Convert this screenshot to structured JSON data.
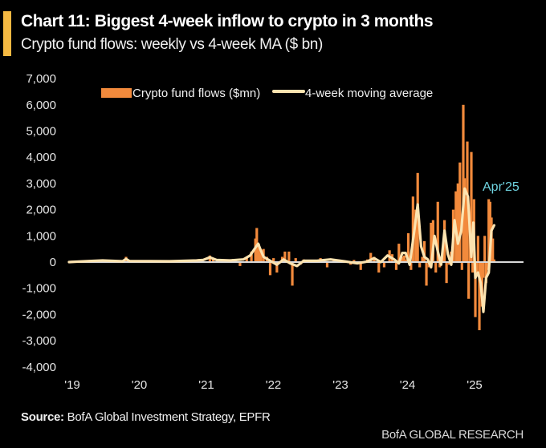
{
  "header": {
    "title": "Chart 11: Biggest 4-week inflow to crypto in 3 months",
    "subtitle": "Crypto fund flows: weekly vs 4-week MA ($ bn)"
  },
  "footer": {
    "source_label": "Source:",
    "source_text": " BofA Global Investment Strategy, EPFR",
    "brand": "BofA GLOBAL RESEARCH"
  },
  "colors": {
    "background": "#000000",
    "accent_bar": "#F5B942",
    "bars": "#F28A3C",
    "ma_line": "#FCE3B0",
    "zero_line": "#d9d9d9",
    "annotation": "#6fd3e0"
  },
  "chart_data": {
    "type": "bar",
    "title": "Chart 11: Biggest 4-week inflow to crypto in 3 months",
    "subtitle": "Crypto fund flows: weekly vs 4-week MA ($ bn)",
    "xlabel": "",
    "ylabel": "",
    "ylim": [
      -4000,
      7000
    ],
    "yticks": [
      7000,
      6000,
      5000,
      4000,
      3000,
      2000,
      1000,
      0,
      -1000,
      -2000,
      -3000,
      -4000
    ],
    "ytick_labels": [
      "7,000",
      "6,000",
      "5,000",
      "4,000",
      "3,000",
      "2,000",
      "1,000",
      "0",
      "-1,000",
      "-2,000",
      "-3,000",
      "-4,000"
    ],
    "xlim": [
      2019.0,
      2025.85
    ],
    "xticks": [
      2019,
      2020,
      2021,
      2022,
      2023,
      2024,
      2025
    ],
    "xtick_labels": [
      "'19",
      "'20",
      "'21",
      "'22",
      "'23",
      "'24",
      "'25"
    ],
    "grid": false,
    "legend": {
      "placement": "top",
      "entries": [
        {
          "label": "Crypto fund flows ($mn)",
          "type": "bar"
        },
        {
          "label": "4-week moving average",
          "type": "line"
        }
      ]
    },
    "annotations": [
      {
        "text": "Apr'25",
        "x": 2025.3,
        "y": 3000
      }
    ],
    "series": [
      {
        "name": "Crypto fund flows ($mn)",
        "type": "bar",
        "x": [
          2019.05,
          2019.4,
          2019.5,
          2019.85,
          2020.3,
          2020.7,
          2020.95,
          2021.1,
          2021.15,
          2021.3,
          2021.45,
          2021.55,
          2021.65,
          2021.72,
          2021.78,
          2021.8,
          2021.83,
          2021.86,
          2021.9,
          2021.95,
          2022.0,
          2022.05,
          2022.1,
          2022.18,
          2022.22,
          2022.28,
          2022.33,
          2022.38,
          2022.45,
          2022.5,
          2022.6,
          2022.75,
          2022.85,
          2022.95,
          2023.1,
          2023.2,
          2023.25,
          2023.35,
          2023.45,
          2023.5,
          2023.55,
          2023.62,
          2023.7,
          2023.78,
          2023.82,
          2023.88,
          2023.92,
          2023.97,
          2024.0,
          2024.03,
          2024.06,
          2024.1,
          2024.13,
          2024.17,
          2024.2,
          2024.23,
          2024.27,
          2024.3,
          2024.33,
          2024.37,
          2024.4,
          2024.43,
          2024.47,
          2024.5,
          2024.53,
          2024.57,
          2024.6,
          2024.63,
          2024.67,
          2024.7,
          2024.73,
          2024.77,
          2024.8,
          2024.83,
          2024.86,
          2024.88,
          2024.9,
          2024.92,
          2024.94,
          2024.96,
          2024.98,
          2025.0,
          2025.02,
          2025.04,
          2025.06,
          2025.08,
          2025.1,
          2025.12,
          2025.14,
          2025.16,
          2025.18,
          2025.2,
          2025.22,
          2025.24,
          2025.26,
          2025.28,
          2025.3,
          2025.32,
          2025.34
        ],
        "values": [
          50,
          80,
          60,
          200,
          60,
          90,
          120,
          250,
          150,
          100,
          120,
          -150,
          200,
          400,
          900,
          1300,
          700,
          450,
          500,
          200,
          -500,
          150,
          -400,
          200,
          400,
          400,
          -900,
          150,
          -100,
          100,
          80,
          150,
          -200,
          100,
          50,
          -100,
          80,
          -300,
          100,
          350,
          200,
          -400,
          -200,
          450,
          300,
          -300,
          700,
          200,
          250,
          100,
          1100,
          -300,
          2500,
          2000,
          3400,
          -200,
          200,
          800,
          -900,
          -200,
          1500,
          1600,
          -400,
          2300,
          -200,
          400,
          1600,
          -800,
          -100,
          400,
          2000,
          2700,
          3000,
          3800,
          -300,
          6000,
          3200,
          2500,
          4600,
          -1400,
          1200,
          4200,
          -400,
          2400,
          -2100,
          -400,
          1000,
          -2600,
          -1300,
          -1700,
          -600,
          1000,
          -800,
          -300,
          2400,
          2300,
          1700,
          900,
          100
        ],
        "values_note": "approximate weekly flows read from chart"
      },
      {
        "name": "4-week moving average",
        "type": "line",
        "x": [
          2019.0,
          2019.3,
          2019.5,
          2019.8,
          2019.85,
          2019.9,
          2020.5,
          2020.9,
          2021.0,
          2021.1,
          2021.2,
          2021.4,
          2021.6,
          2021.7,
          2021.78,
          2021.82,
          2021.86,
          2021.9,
          2022.0,
          2022.1,
          2022.2,
          2022.3,
          2022.4,
          2022.5,
          2022.7,
          2022.9,
          2023.1,
          2023.3,
          2023.45,
          2023.55,
          2023.65,
          2023.75,
          2023.85,
          2023.92,
          2023.97,
          2024.02,
          2024.08,
          2024.15,
          2024.2,
          2024.25,
          2024.3,
          2024.35,
          2024.4,
          2024.45,
          2024.5,
          2024.55,
          2024.6,
          2024.65,
          2024.7,
          2024.75,
          2024.8,
          2024.85,
          2024.9,
          2024.95,
          2025.0,
          2025.03,
          2025.06,
          2025.1,
          2025.14,
          2025.18,
          2025.22,
          2025.26,
          2025.3,
          2025.34
        ],
        "values": [
          0,
          40,
          60,
          30,
          120,
          40,
          30,
          60,
          80,
          180,
          80,
          60,
          100,
          250,
          550,
          700,
          450,
          200,
          50,
          -100,
          100,
          -50,
          -150,
          50,
          50,
          100,
          30,
          -50,
          20,
          150,
          0,
          250,
          100,
          -50,
          350,
          350,
          -100,
          1200,
          2200,
          600,
          200,
          100,
          -200,
          1000,
          400,
          -100,
          1200,
          300,
          -100,
          1600,
          700,
          1200,
          2800,
          2500,
          200,
          1500,
          -600,
          -400,
          -800,
          -1900,
          -600,
          -400,
          1200,
          1400
        ],
        "values_note": "approximate 4-week MA read from chart"
      }
    ]
  }
}
